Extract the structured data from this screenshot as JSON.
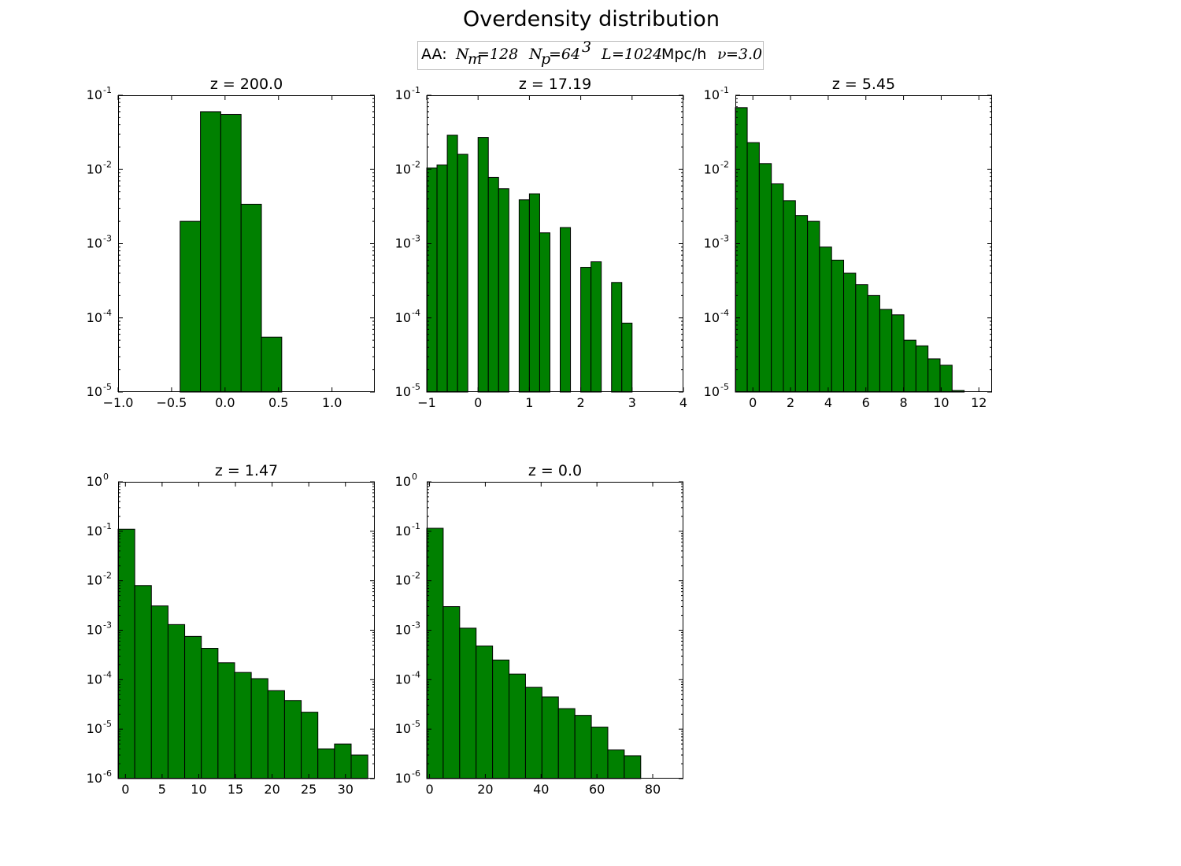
{
  "figure": {
    "suptitle": "Overdensity distribution",
    "legend": {
      "prefix": "AA:",
      "parts": [
        {
          "text": "N",
          "sub": "m",
          "value": "=128"
        },
        {
          "text": "N",
          "sub": "p",
          "value": "=64",
          "sup": "3"
        },
        {
          "text": "L",
          "value": "=1024",
          "unit": "Mpc/h"
        },
        {
          "text": "ν",
          "value": "=3.0"
        }
      ]
    },
    "bar_color": "#008000",
    "edge_color": "#000000"
  },
  "chart_data": [
    {
      "type": "bar",
      "title": "z = 200.0",
      "xlabel": "",
      "ylabel": "",
      "yscale": "log",
      "xlim": [
        -1.0,
        1.4
      ],
      "ylim": [
        1e-05,
        0.1
      ],
      "xticks": [
        -1.0,
        -0.5,
        0.0,
        0.5,
        1.0
      ],
      "xtick_labels": [
        "−1.0",
        "−0.5",
        "0.0",
        "0.5",
        "1.0"
      ],
      "yticks": [
        {
          "base": "10",
          "exp": "-5",
          "value": 1e-05
        },
        {
          "base": "10",
          "exp": "-4",
          "value": 0.0001
        },
        {
          "base": "10",
          "exp": "-3",
          "value": 0.001
        },
        {
          "base": "10",
          "exp": "-2",
          "value": 0.01
        },
        {
          "base": "10",
          "exp": "-1",
          "value": 0.1
        }
      ],
      "bins": [
        [
          -0.42,
          -0.23
        ],
        [
          -0.23,
          -0.04
        ],
        [
          -0.04,
          0.15
        ],
        [
          0.15,
          0.34
        ],
        [
          0.34,
          0.53
        ]
      ],
      "values": [
        0.002,
        0.06,
        0.055,
        0.0034,
        5.5e-05
      ]
    },
    {
      "type": "bar",
      "title": "z = 17.19",
      "xlabel": "",
      "ylabel": "",
      "yscale": "log",
      "xlim": [
        -1.0,
        4.0
      ],
      "ylim": [
        1e-05,
        0.1
      ],
      "xticks": [
        -1,
        0,
        1,
        2,
        3,
        4
      ],
      "xtick_labels": [
        "−1",
        "0",
        "1",
        "2",
        "3",
        "4"
      ],
      "yticks": [
        {
          "base": "10",
          "exp": "-5",
          "value": 1e-05
        },
        {
          "base": "10",
          "exp": "-4",
          "value": 0.0001
        },
        {
          "base": "10",
          "exp": "-3",
          "value": 0.001
        },
        {
          "base": "10",
          "exp": "-2",
          "value": 0.01
        },
        {
          "base": "10",
          "exp": "-1",
          "value": 0.1
        }
      ],
      "bins": [
        [
          -1.0,
          -0.8
        ],
        [
          -0.8,
          -0.6
        ],
        [
          -0.6,
          -0.4
        ],
        [
          -0.4,
          -0.2
        ],
        [
          0.0,
          0.2
        ],
        [
          0.2,
          0.4
        ],
        [
          0.4,
          0.6
        ],
        [
          0.8,
          1.0
        ],
        [
          1.0,
          1.2
        ],
        [
          1.2,
          1.4
        ],
        [
          1.6,
          1.8
        ],
        [
          2.0,
          2.2
        ],
        [
          2.2,
          2.4
        ],
        [
          2.6,
          2.8
        ],
        [
          2.8,
          3.0
        ]
      ],
      "values": [
        0.0105,
        0.0115,
        0.029,
        0.016,
        0.027,
        0.0078,
        0.0055,
        0.0039,
        0.0047,
        0.0014,
        0.00165,
        0.00048,
        0.00057,
        0.0003,
        8.5e-05
      ]
    },
    {
      "type": "bar",
      "title": "z = 5.45",
      "xlabel": "",
      "ylabel": "",
      "yscale": "log",
      "xlim": [
        -0.93,
        12.7
      ],
      "ylim": [
        1e-05,
        0.1
      ],
      "xticks": [
        0,
        2,
        4,
        6,
        8,
        10,
        12
      ],
      "xtick_labels": [
        "0",
        "2",
        "4",
        "6",
        "8",
        "10",
        "12"
      ],
      "yticks": [
        {
          "base": "10",
          "exp": "-5",
          "value": 1e-05
        },
        {
          "base": "10",
          "exp": "-4",
          "value": 0.0001
        },
        {
          "base": "10",
          "exp": "-3",
          "value": 0.001
        },
        {
          "base": "10",
          "exp": "-2",
          "value": 0.01
        },
        {
          "base": "10",
          "exp": "-1",
          "value": 0.1
        }
      ],
      "bins": [
        [
          -0.93,
          -0.3
        ],
        [
          -0.3,
          0.34
        ],
        [
          0.34,
          0.98
        ],
        [
          0.98,
          1.62
        ],
        [
          1.62,
          2.26
        ],
        [
          2.26,
          2.9
        ],
        [
          2.9,
          3.54
        ],
        [
          3.54,
          4.18
        ],
        [
          4.18,
          4.82
        ],
        [
          4.82,
          5.46
        ],
        [
          5.46,
          6.1
        ],
        [
          6.1,
          6.74
        ],
        [
          6.74,
          7.38
        ],
        [
          7.38,
          8.02
        ],
        [
          8.02,
          8.66
        ],
        [
          8.66,
          9.3
        ],
        [
          9.3,
          9.94
        ],
        [
          9.94,
          10.58
        ],
        [
          10.58,
          11.22
        ]
      ],
      "values": [
        0.068,
        0.023,
        0.012,
        0.0064,
        0.0038,
        0.0024,
        0.002,
        0.0009,
        0.0006,
        0.0004,
        0.00028,
        0.0002,
        0.00013,
        0.00011,
        5e-05,
        4.2e-05,
        2.8e-05,
        2.3e-05,
        1.05e-05
      ]
    },
    {
      "type": "bar",
      "title": "z = 1.47",
      "xlabel": "",
      "ylabel": "",
      "yscale": "log",
      "xlim": [
        -1.0,
        34.0
      ],
      "ylim": [
        1e-06,
        1.0
      ],
      "xticks": [
        0,
        5,
        10,
        15,
        20,
        25,
        30
      ],
      "xtick_labels": [
        "0",
        "5",
        "10",
        "15",
        "20",
        "25",
        "30"
      ],
      "yticks": [
        {
          "base": "10",
          "exp": "-6",
          "value": 1e-06
        },
        {
          "base": "10",
          "exp": "-5",
          "value": 1e-05
        },
        {
          "base": "10",
          "exp": "-4",
          "value": 0.0001
        },
        {
          "base": "10",
          "exp": "-3",
          "value": 0.001
        },
        {
          "base": "10",
          "exp": "-2",
          "value": 0.01
        },
        {
          "base": "10",
          "exp": "-1",
          "value": 0.1
        },
        {
          "base": "10",
          "exp": "0",
          "value": 1
        }
      ],
      "bins": [
        [
          -1.0,
          1.27
        ],
        [
          1.27,
          3.54
        ],
        [
          3.54,
          5.81
        ],
        [
          5.81,
          8.08
        ],
        [
          8.08,
          10.35
        ],
        [
          10.35,
          12.62
        ],
        [
          12.62,
          14.89
        ],
        [
          14.89,
          17.16
        ],
        [
          17.16,
          19.43
        ],
        [
          19.43,
          21.7
        ],
        [
          21.7,
          23.97
        ],
        [
          23.97,
          26.24
        ],
        [
          26.24,
          28.51
        ],
        [
          28.51,
          30.78
        ],
        [
          30.78,
          33.05
        ]
      ],
      "values": [
        0.11,
        0.008,
        0.0031,
        0.0013,
        0.00075,
        0.00043,
        0.00022,
        0.00014,
        0.000105,
        6e-05,
        3.8e-05,
        2.2e-05,
        4e-06,
        5e-06,
        3e-06
      ]
    },
    {
      "type": "bar",
      "title": "z = 0.0",
      "xlabel": "",
      "ylabel": "",
      "yscale": "log",
      "xlim": [
        -1.0,
        91.0
      ],
      "ylim": [
        1e-06,
        1.0
      ],
      "xticks": [
        0,
        20,
        40,
        60,
        80
      ],
      "xtick_labels": [
        "0",
        "20",
        "40",
        "60",
        "80"
      ],
      "yticks": [
        {
          "base": "10",
          "exp": "-6",
          "value": 1e-06
        },
        {
          "base": "10",
          "exp": "-5",
          "value": 1e-05
        },
        {
          "base": "10",
          "exp": "-4",
          "value": 0.0001
        },
        {
          "base": "10",
          "exp": "-3",
          "value": 0.001
        },
        {
          "base": "10",
          "exp": "-2",
          "value": 0.01
        },
        {
          "base": "10",
          "exp": "-1",
          "value": 0.1
        },
        {
          "base": "10",
          "exp": "0",
          "value": 1
        }
      ],
      "bins": [
        [
          -1.0,
          4.9
        ],
        [
          4.9,
          10.8
        ],
        [
          10.8,
          16.7
        ],
        [
          16.7,
          22.6
        ],
        [
          22.6,
          28.5
        ],
        [
          28.5,
          34.4
        ],
        [
          34.4,
          40.3
        ],
        [
          40.3,
          46.2
        ],
        [
          46.2,
          52.1
        ],
        [
          52.1,
          58.0
        ],
        [
          58.0,
          63.9
        ],
        [
          63.9,
          69.8
        ],
        [
          69.8,
          75.7
        ]
      ],
      "values": [
        0.115,
        0.003,
        0.0011,
        0.00048,
        0.00025,
        0.00013,
        7e-05,
        4.5e-05,
        2.6e-05,
        1.9e-05,
        1.1e-05,
        3.8e-06,
        2.9e-06
      ]
    }
  ]
}
